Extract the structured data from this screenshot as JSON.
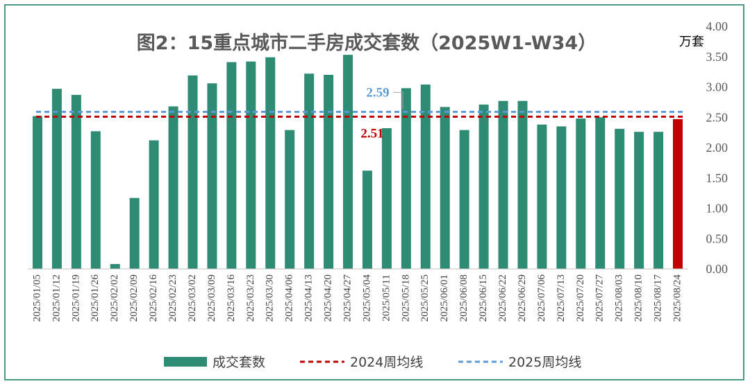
{
  "chart_data": {
    "type": "bar",
    "title": "图2：15重点城市二手房成交套数（2025W1-W34）",
    "unit_label": "万套",
    "categories": [
      "2025/01/05",
      "2025/01/12",
      "2025/01/19",
      "2025/01/26",
      "2025/02/02",
      "2025/02/09",
      "2025/02/16",
      "2025/02/23",
      "2025/03/02",
      "2025/03/09",
      "2025/03/16",
      "2025/03/23",
      "2025/03/30",
      "2025/04/06",
      "2025/04/13",
      "2025/04/20",
      "2025/04/27",
      "2025/05/04",
      "2025/05/11",
      "2025/05/18",
      "2025/05/25",
      "2025/06/01",
      "2025/06/08",
      "2025/06/15",
      "2025/06/22",
      "2025/06/29",
      "2025/07/06",
      "2025/07/13",
      "2025/07/20",
      "2025/07/27",
      "2025/08/03",
      "2025/08/10",
      "2025/08/17",
      "2025/08/24"
    ],
    "series": [
      {
        "name": "成交套数",
        "color": "#2e8b74",
        "highlight_color": "#c00000",
        "highlight_index": 33,
        "values": [
          2.52,
          2.97,
          2.87,
          2.27,
          0.08,
          1.17,
          2.12,
          2.68,
          3.19,
          3.06,
          3.41,
          3.42,
          3.49,
          2.29,
          3.22,
          3.2,
          3.53,
          1.62,
          2.32,
          2.98,
          3.04,
          2.67,
          2.29,
          2.71,
          2.77,
          2.77,
          2.38,
          2.35,
          2.48,
          2.5,
          2.31,
          2.26,
          2.26,
          2.47
        ]
      }
    ],
    "reference_lines": [
      {
        "name": "2024周均线",
        "value": 2.51,
        "label": "2.51",
        "color": "#c00000"
      },
      {
        "name": "2025周均线",
        "value": 2.59,
        "label": "2.59",
        "color": "#5b9bd5"
      }
    ],
    "ylim": [
      0,
      4
    ],
    "yticks": [
      "0.00",
      "0.50",
      "1.00",
      "1.50",
      "2.00",
      "2.50",
      "3.00",
      "3.50",
      "4.00"
    ],
    "y_axis_position": "right",
    "grid": false,
    "legend_position": "bottom"
  }
}
